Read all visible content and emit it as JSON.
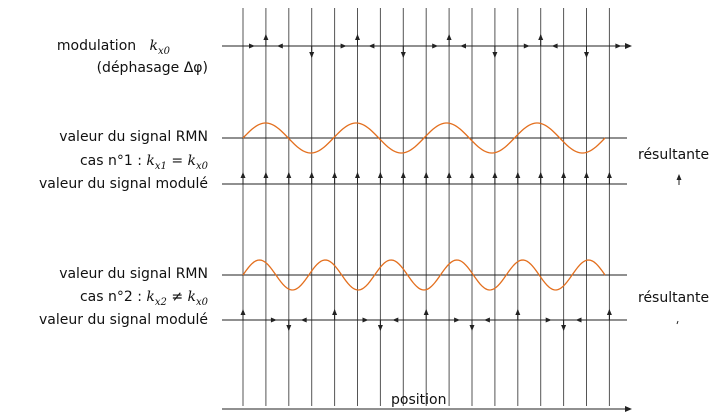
{
  "labels": {
    "modulation": "modulation",
    "modulation_math": "k",
    "modulation_sub": "x0",
    "dephasage": "(déphasage Δφ)",
    "signal_rmn_1": "valeur du signal RMN",
    "case1_prefix": "cas n°1 :",
    "case1_math": "k",
    "case1_sub1": "x1",
    "case1_eq": "=",
    "case1_rhs": "k",
    "case1_sub2": "x0",
    "signal_module_1": "valeur du signal modulé",
    "signal_rmn_2": "valeur du signal RMN",
    "case2_prefix": "cas n°2 :",
    "case2_math": "k",
    "case2_sub1": "x2",
    "case2_neq": "≠",
    "case2_rhs": "k",
    "case2_sub2": "x0",
    "signal_module_2": "valeur du signal modulé",
    "resultante_1": "résultante",
    "resultante_2": "résultante",
    "position": "position"
  },
  "colors": {
    "axis": "#222222",
    "gridline": "#555555",
    "signal": "#e36f1e",
    "text": "#111111"
  },
  "modulation_directions": [
    "right",
    "up",
    "left",
    "down",
    "right",
    "up",
    "left",
    "down",
    "right",
    "up",
    "left",
    "down",
    "right",
    "up",
    "left",
    "down",
    "right"
  ],
  "case1_directions": [
    "up",
    "up",
    "up",
    "up",
    "up",
    "up",
    "up",
    "up",
    "up",
    "up",
    "up",
    "up",
    "up",
    "up",
    "up",
    "up",
    "up"
  ],
  "case2_directions": [
    "up",
    "right",
    "down",
    "left",
    "up",
    "right",
    "down",
    "left",
    "up",
    "right",
    "down",
    "left",
    "up",
    "right",
    "down",
    "left",
    "up"
  ],
  "case1_cycles": 4,
  "case2_cycles": 5.5
}
